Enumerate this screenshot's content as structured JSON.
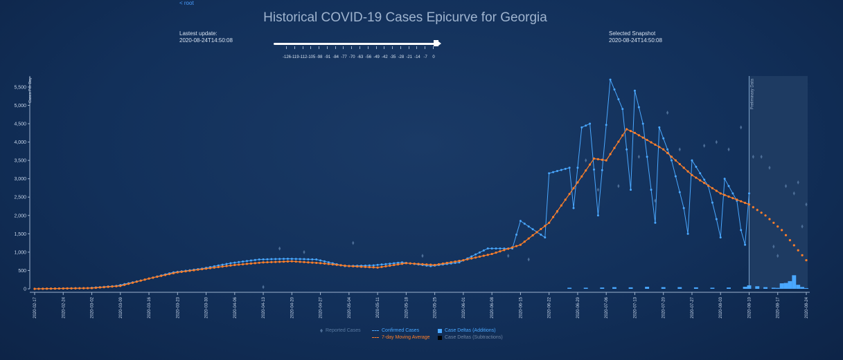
{
  "nav": {
    "root_label": "< root"
  },
  "title": "Historical COVID-19 Cases Epicurve for Georgia",
  "last_update": {
    "label": "Lastest update:",
    "value": "2020-08-24T14:50:08"
  },
  "snapshot": {
    "label": "Selected Snapshot",
    "value": "2020-08-24T14:50:08"
  },
  "slider": {
    "value": 0,
    "tick_labels": [
      "-126",
      "-119",
      "-112",
      "-105",
      "-98",
      "-91",
      "-84",
      "-77",
      "-70",
      "-63",
      "-56",
      "-49",
      "-42",
      "-35",
      "-28",
      "-21",
      "-14",
      "-7",
      "0"
    ]
  },
  "colors": {
    "confirmed": "#4aa8ff",
    "moving_avg": "#ff7f2a",
    "reported": "#4d6e97",
    "deltas_add": "#4aa8ff",
    "deltas_sub": "#000000",
    "prelim_band": "#1e3b62"
  },
  "chart_data": {
    "type": "line",
    "xlabel": "",
    "ylabel": "Cases Per Day",
    "ylim": [
      0,
      5800
    ],
    "y_ticks": [
      0,
      500,
      1000,
      1500,
      2000,
      2500,
      3000,
      3500,
      4000,
      4500,
      5000,
      5500
    ],
    "y_tick_labels": [
      "0",
      "500",
      "1,000",
      "1,500",
      "2,000",
      "2,500",
      "3,000",
      "3,500",
      "4,000",
      "4,500",
      "5,000",
      "5,500"
    ],
    "x_start": "2020-02-17",
    "x_end": "2020-08-24",
    "x_tick_labels": [
      "2020-02-17",
      "2020-02-24",
      "2020-03-02",
      "2020-03-09",
      "2020-03-16",
      "2020-03-23",
      "2020-03-30",
      "2020-04-06",
      "2020-04-13",
      "2020-04-20",
      "2020-04-27",
      "2020-05-04",
      "2020-05-11",
      "2020-05-18",
      "2020-05-25",
      "2020-06-01",
      "2020-06-08",
      "2020-06-15",
      "2020-06-22",
      "2020-06-29",
      "2020-07-06",
      "2020-07-13",
      "2020-07-20",
      "2020-07-27",
      "2020-08-03",
      "2020-08-10",
      "2020-08-17",
      "2020-08-24"
    ],
    "preliminary_label": "Preliminary Data",
    "preliminary_start": "2020-08-10",
    "confirmed_anchors": [
      [
        "2020-02-17",
        0
      ],
      [
        "2020-03-01",
        20
      ],
      [
        "2020-03-08",
        80
      ],
      [
        "2020-03-15",
        250
      ],
      [
        "2020-03-22",
        450
      ],
      [
        "2020-03-29",
        550
      ],
      [
        "2020-04-05",
        700
      ],
      [
        "2020-04-12",
        800
      ],
      [
        "2020-04-19",
        820
      ],
      [
        "2020-04-26",
        800
      ],
      [
        "2020-05-03",
        620
      ],
      [
        "2020-05-10",
        640
      ],
      [
        "2020-05-17",
        720
      ],
      [
        "2020-05-24",
        620
      ],
      [
        "2020-05-31",
        720
      ],
      [
        "2020-06-07",
        1100
      ],
      [
        "2020-06-13",
        1100
      ],
      [
        "2020-06-15",
        1850
      ],
      [
        "2020-06-21",
        1400
      ],
      [
        "2020-06-22",
        3150
      ],
      [
        "2020-06-27",
        3300
      ],
      [
        "2020-06-28",
        2200
      ],
      [
        "2020-06-30",
        4400
      ],
      [
        "2020-07-02",
        4500
      ],
      [
        "2020-07-04",
        2000
      ],
      [
        "2020-07-07",
        5700
      ],
      [
        "2020-07-10",
        4900
      ],
      [
        "2020-07-12",
        2700
      ],
      [
        "2020-07-13",
        5400
      ],
      [
        "2020-07-15",
        4500
      ],
      [
        "2020-07-18",
        1800
      ],
      [
        "2020-07-19",
        4400
      ],
      [
        "2020-07-22",
        3500
      ],
      [
        "2020-07-25",
        2200
      ],
      [
        "2020-07-26",
        1500
      ],
      [
        "2020-07-27",
        3500
      ],
      [
        "2020-07-31",
        2800
      ],
      [
        "2020-08-02",
        1900
      ],
      [
        "2020-08-03",
        1400
      ],
      [
        "2020-08-04",
        3000
      ],
      [
        "2020-08-07",
        2400
      ],
      [
        "2020-08-08",
        1600
      ],
      [
        "2020-08-09",
        1200
      ],
      [
        "2020-08-10",
        2600
      ]
    ],
    "moving_avg_anchors": [
      [
        "2020-02-17",
        0
      ],
      [
        "2020-03-02",
        20
      ],
      [
        "2020-03-09",
        80
      ],
      [
        "2020-03-16",
        280
      ],
      [
        "2020-03-23",
        450
      ],
      [
        "2020-03-30",
        550
      ],
      [
        "2020-04-06",
        650
      ],
      [
        "2020-04-13",
        720
      ],
      [
        "2020-04-20",
        750
      ],
      [
        "2020-04-27",
        700
      ],
      [
        "2020-05-04",
        620
      ],
      [
        "2020-05-11",
        580
      ],
      [
        "2020-05-18",
        700
      ],
      [
        "2020-05-25",
        650
      ],
      [
        "2020-06-01",
        780
      ],
      [
        "2020-06-08",
        950
      ],
      [
        "2020-06-15",
        1200
      ],
      [
        "2020-06-22",
        1800
      ],
      [
        "2020-06-29",
        2900
      ],
      [
        "2020-07-03",
        3550
      ],
      [
        "2020-07-06",
        3500
      ],
      [
        "2020-07-11",
        4350
      ],
      [
        "2020-07-13",
        4250
      ],
      [
        "2020-07-20",
        3800
      ],
      [
        "2020-07-27",
        3100
      ],
      [
        "2020-08-03",
        2600
      ],
      [
        "2020-08-10",
        2300
      ],
      [
        "2020-08-14",
        2000
      ],
      [
        "2020-08-18",
        1600
      ],
      [
        "2020-08-22",
        1050
      ],
      [
        "2020-08-24",
        780
      ]
    ],
    "case_delta_additions": [
      [
        "2020-06-27",
        30
      ],
      [
        "2020-07-01",
        30
      ],
      [
        "2020-07-05",
        35
      ],
      [
        "2020-07-08",
        45
      ],
      [
        "2020-07-12",
        40
      ],
      [
        "2020-07-16",
        55
      ],
      [
        "2020-07-20",
        45
      ],
      [
        "2020-07-24",
        45
      ],
      [
        "2020-07-28",
        40
      ],
      [
        "2020-08-01",
        30
      ],
      [
        "2020-08-05",
        35
      ],
      [
        "2020-08-09",
        55
      ],
      [
        "2020-08-10",
        95
      ],
      [
        "2020-08-12",
        70
      ],
      [
        "2020-08-14",
        45
      ],
      [
        "2020-08-16",
        30
      ],
      [
        "2020-08-17",
        25
      ],
      [
        "2020-08-18",
        150
      ],
      [
        "2020-08-19",
        160
      ],
      [
        "2020-08-20",
        210
      ],
      [
        "2020-08-21",
        370
      ],
      [
        "2020-08-22",
        110
      ],
      [
        "2020-08-23",
        50
      ],
      [
        "2020-08-24",
        20
      ]
    ],
    "reported_scatter": [
      [
        "2020-04-13",
        50
      ],
      [
        "2020-04-17",
        1100
      ],
      [
        "2020-04-23",
        1000
      ],
      [
        "2020-05-05",
        1250
      ],
      [
        "2020-05-22",
        900
      ],
      [
        "2020-06-12",
        900
      ],
      [
        "2020-06-17",
        800
      ],
      [
        "2020-06-24",
        2100
      ],
      [
        "2020-07-01",
        3500
      ],
      [
        "2020-07-04",
        2700
      ],
      [
        "2020-07-09",
        2800
      ],
      [
        "2020-07-14",
        3600
      ],
      [
        "2020-07-18",
        2400
      ],
      [
        "2020-07-21",
        4800
      ],
      [
        "2020-07-24",
        3800
      ],
      [
        "2020-07-30",
        3900
      ],
      [
        "2020-08-02",
        4000
      ],
      [
        "2020-08-05",
        3800
      ],
      [
        "2020-08-08",
        4400
      ],
      [
        "2020-08-11",
        3600
      ],
      [
        "2020-08-13",
        3600
      ],
      [
        "2020-08-15",
        3300
      ],
      [
        "2020-08-16",
        1150
      ],
      [
        "2020-08-17",
        900
      ],
      [
        "2020-08-19",
        2800
      ],
      [
        "2020-08-21",
        2600
      ],
      [
        "2020-08-22",
        2900
      ],
      [
        "2020-08-23",
        1700
      ],
      [
        "2020-08-24",
        2300
      ]
    ],
    "legend": [
      {
        "key": "reported",
        "label": "Reported Cases"
      },
      {
        "key": "confirmed",
        "label": "Confirmed Cases"
      },
      {
        "key": "deltas_add",
        "label": "Case Deltas (Additions)"
      },
      {
        "key": "moving_avg",
        "label": "7-day Moving Average"
      },
      {
        "key": "deltas_sub",
        "label": "Case Deltas (Subtractions)"
      }
    ],
    "legend_position": "bottom-center",
    "grid": false
  }
}
